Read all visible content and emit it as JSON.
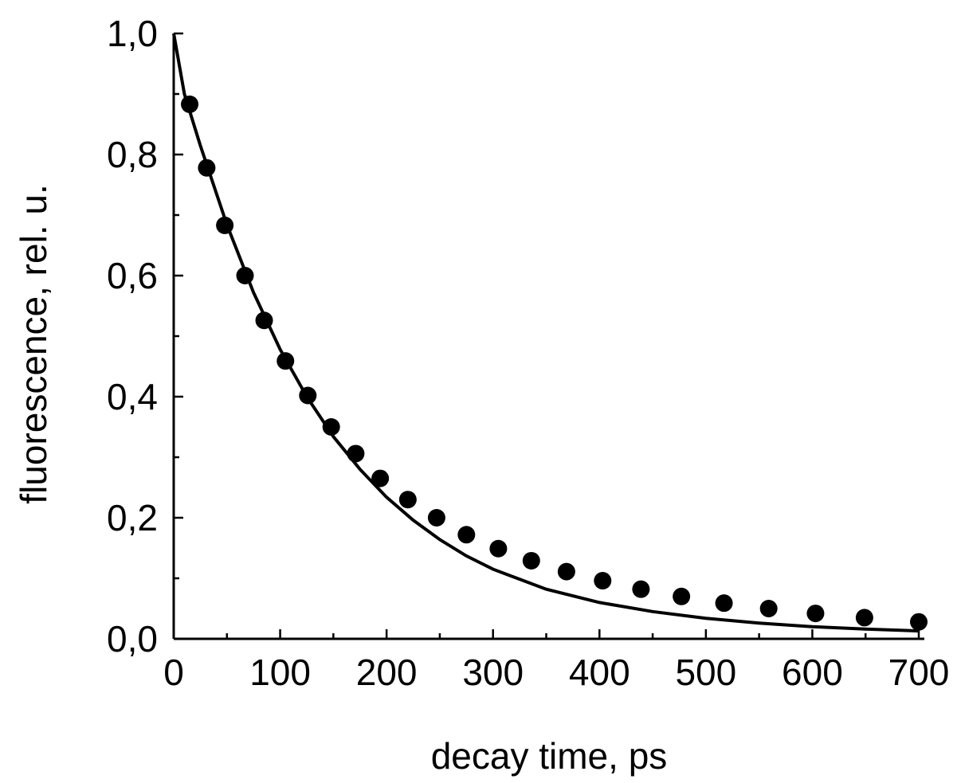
{
  "chart_data": {
    "type": "scatter",
    "xlabel": "decay time, ps",
    "ylabel": "fluorescence, rel. u.",
    "xlim": [
      0,
      700
    ],
    "ylim": [
      0,
      1.0
    ],
    "grid": false,
    "x_ticks": [
      0,
      100,
      200,
      300,
      400,
      500,
      600,
      700
    ],
    "x_tick_labels": [
      "0",
      "100",
      "200",
      "300",
      "400",
      "500",
      "600",
      "700"
    ],
    "y_ticks": [
      0,
      0.2,
      0.4,
      0.6,
      0.8,
      1.0
    ],
    "y_tick_labels": [
      "0,0",
      "0,2",
      "0,4",
      "0,6",
      "0,8",
      "1,0"
    ],
    "series": [
      {
        "type": "scatter",
        "marker": "filled-circle",
        "color": "#000000",
        "x": [
          15,
          31,
          48,
          67,
          85,
          105,
          126,
          148,
          171,
          194,
          220,
          247,
          275,
          305,
          336,
          369,
          403,
          439,
          477,
          517,
          559,
          603,
          649,
          700
        ],
        "y": [
          0.883,
          0.778,
          0.683,
          0.6,
          0.526,
          0.459,
          0.402,
          0.35,
          0.306,
          0.265,
          0.23,
          0.2,
          0.172,
          0.149,
          0.129,
          0.111,
          0.096,
          0.082,
          0.07,
          0.059,
          0.05,
          0.042,
          0.035,
          0.028
        ]
      },
      {
        "type": "line",
        "color": "#000000",
        "x": [
          0,
          10,
          25,
          50,
          75,
          100,
          125,
          150,
          175,
          200,
          225,
          250,
          275,
          300,
          350,
          400,
          450,
          500,
          550,
          600,
          650,
          700
        ],
        "y": [
          1.0,
          0.9,
          0.815,
          0.684,
          0.572,
          0.478,
          0.4,
          0.334,
          0.28,
          0.234,
          0.196,
          0.164,
          0.137,
          0.115,
          0.082,
          0.06,
          0.045,
          0.034,
          0.026,
          0.02,
          0.016,
          0.013
        ]
      }
    ]
  }
}
